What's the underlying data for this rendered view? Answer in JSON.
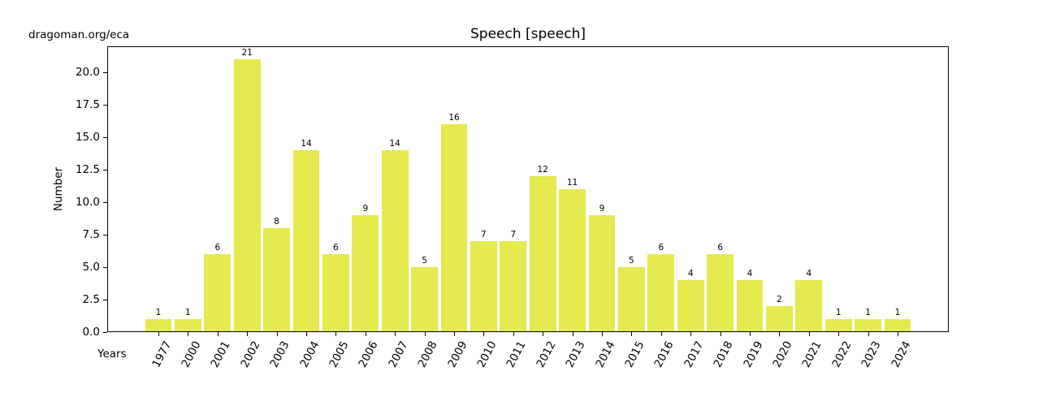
{
  "header": {
    "watermark": "dragoman.org/eca"
  },
  "chart_data": {
    "type": "bar",
    "title": "Speech [speech]",
    "xlabel": "Years",
    "ylabel": "Number",
    "categories": [
      "1977",
      "2000",
      "2001",
      "2002",
      "2003",
      "2004",
      "2005",
      "2006",
      "2007",
      "2008",
      "2009",
      "2010",
      "2011",
      "2012",
      "2013",
      "2014",
      "2015",
      "2016",
      "2017",
      "2018",
      "2019",
      "2020",
      "2021",
      "2022",
      "2023",
      "2024"
    ],
    "values": [
      1,
      1,
      6,
      21,
      8,
      14,
      6,
      9,
      14,
      5,
      16,
      7,
      7,
      12,
      11,
      9,
      5,
      6,
      4,
      6,
      4,
      2,
      4,
      1,
      1,
      1
    ],
    "ylim": [
      0,
      22
    ],
    "yticks": [
      0,
      2.5,
      5,
      7.5,
      10,
      12.5,
      15,
      17.5,
      20
    ],
    "ytick_labels": [
      "0.0",
      "2.5",
      "5.0",
      "7.5",
      "10.0",
      "12.5",
      "15.0",
      "17.5",
      "20.0"
    ],
    "bar_color": "#e5ea4e",
    "bar_value_labels": true,
    "grid": false,
    "legend_position": "none",
    "x_tick_rotation_deg": 62
  }
}
